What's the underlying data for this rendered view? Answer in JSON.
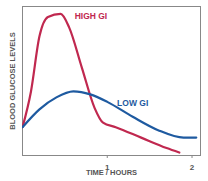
{
  "chart_data": {
    "type": "line",
    "x_label": "TIME / HOURS",
    "y_label": "BLOOD GLUCOSE LEVELS",
    "series": [
      {
        "name": "HIGH GI",
        "color": "#c0284f",
        "x": [
          0,
          0.1,
          0.2,
          0.3,
          0.45,
          0.55,
          0.7,
          0.85,
          0.95,
          1.1,
          1.4,
          1.7,
          1.85
        ],
        "values": [
          1.9,
          4.3,
          8.0,
          9.3,
          9.5,
          8.6,
          5.9,
          3.2,
          2.2,
          1.9,
          1.2,
          0.5,
          0.2
        ]
      },
      {
        "name": "LOW GI",
        "color": "#1e5aa0",
        "x": [
          0,
          0.2,
          0.4,
          0.6,
          0.8,
          1.0,
          1.3,
          1.6,
          1.9,
          2.05
        ],
        "values": [
          1.9,
          3.1,
          3.9,
          4.3,
          4.1,
          3.6,
          2.6,
          1.7,
          1.2,
          1.2
        ]
      }
    ],
    "xlim": [
      0,
      2.1
    ],
    "xticks": [
      1,
      2
    ],
    "ylim": [
      0,
      10
    ],
    "yticks": [],
    "tick_labels": "x"
  }
}
